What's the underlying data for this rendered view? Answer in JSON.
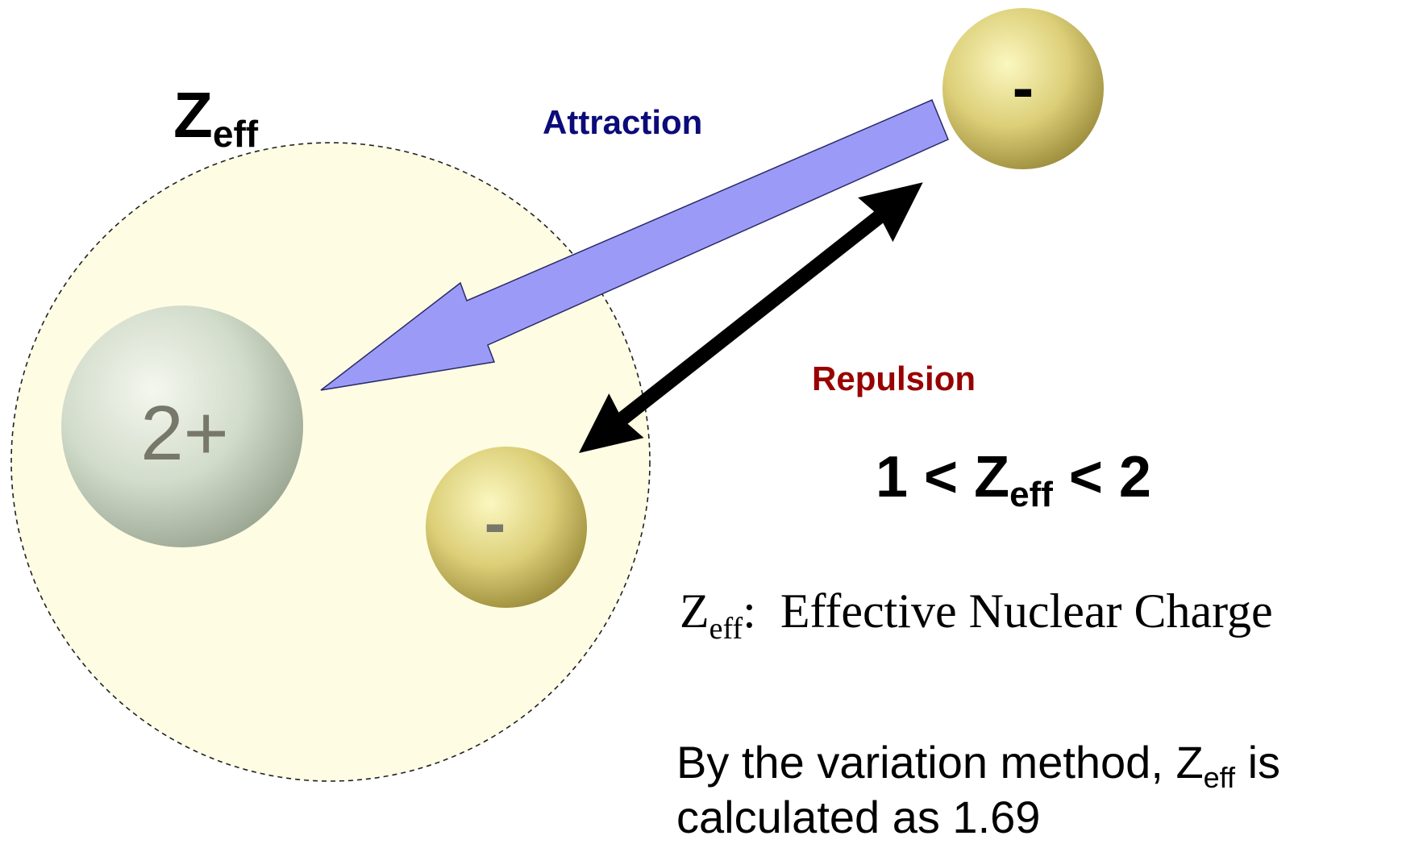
{
  "diagram": {
    "zeff_label": {
      "main": "Z",
      "sub": "eff"
    },
    "attraction": "Attraction",
    "repulsion": "Repulsion",
    "nucleus": "2+",
    "inner_electron": "-",
    "outer_electron": "-",
    "inequality": {
      "before": "1 < ",
      "main": "Z",
      "sub": "eff",
      "after": " < 2"
    },
    "definition": {
      "main": "Z",
      "sub": "eff",
      "rest": ":  Effective Nuclear Charge"
    },
    "note": {
      "line1_before": "By the variation method, Z",
      "line1_sub": "eff",
      "line1_after": " is",
      "line2": "calculated as 1.69"
    }
  }
}
